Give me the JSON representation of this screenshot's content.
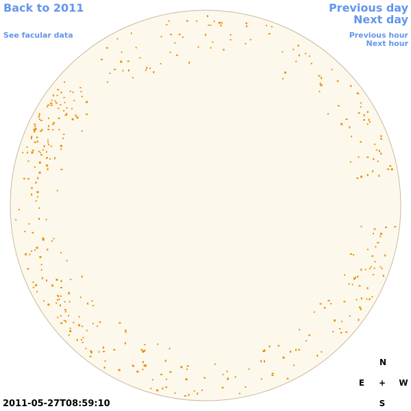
{
  "header": {
    "back_link": "Back to 2011",
    "facular_link": "See facular data",
    "previous_day": "Previous day",
    "next_day": "Next day",
    "previous_hour": "Previous hour",
    "next_hour": "Next hour"
  },
  "timestamp": "2011-05-27T08:59:10",
  "compass": {
    "north": "N",
    "east": "E",
    "center": "+",
    "west": "W",
    "south": "S"
  }
}
